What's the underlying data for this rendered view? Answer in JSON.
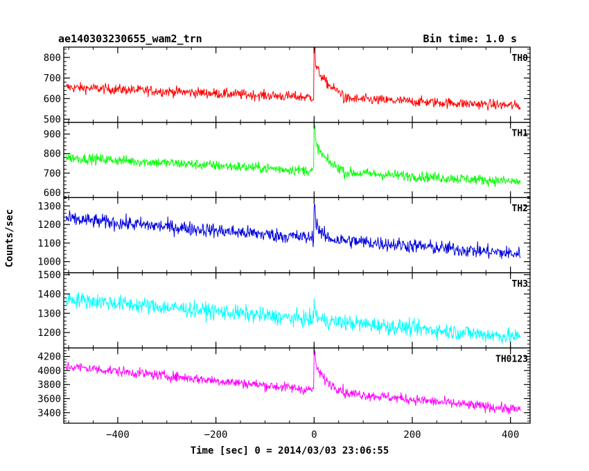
{
  "header": {
    "title": "ae140303230655_wam2_trn",
    "bin_time": "Bin time: 1.0 s"
  },
  "chart_data": {
    "type": "line",
    "xlabel": "Time [sec] 0 = 2014/03/03 23:06:55",
    "ylabel": "Counts/sec",
    "xlim": [
      -510,
      440
    ],
    "xticks": [
      -400,
      -200,
      0,
      200,
      400
    ],
    "grid": false,
    "panels": [
      {
        "name": "TH0",
        "color": "#ff0000",
        "ylim": [
          485,
          850
        ],
        "yticks": [
          500,
          600,
          700,
          800
        ],
        "start": 655,
        "end": 565,
        "noise": 45,
        "burst_peak": 850,
        "burst_decay": 30,
        "after_drop": 30
      },
      {
        "name": "TH1",
        "color": "#00ff00",
        "ylim": [
          575,
          960
        ],
        "yticks": [
          600,
          700,
          800,
          900
        ],
        "start": 780,
        "end": 655,
        "noise": 48,
        "burst_peak": 945,
        "burst_decay": 25,
        "after_drop": 40
      },
      {
        "name": "TH2",
        "color": "#0000dd",
        "ylim": [
          940,
          1345
        ],
        "yticks": [
          1000,
          1100,
          1200,
          1300
        ],
        "start": 1230,
        "end": 1040,
        "noise": 70,
        "burst_peak": 1320,
        "burst_decay": 10,
        "after_drop": 20
      },
      {
        "name": "TH3",
        "color": "#00ffff",
        "ylim": [
          1120,
          1510
        ],
        "yticks": [
          1200,
          1300,
          1400,
          1500
        ],
        "start": 1375,
        "end": 1175,
        "noise": 75,
        "burst_peak": 1360,
        "burst_decay": 5,
        "after_drop": 0
      },
      {
        "name": "TH0123",
        "color": "#ff00ff",
        "ylim": [
          3250,
          4320
        ],
        "yticks": [
          3400,
          3600,
          3800,
          4000,
          4200
        ],
        "start": 4060,
        "end": 3440,
        "noise": 130,
        "burst_peak": 4290,
        "burst_decay": 25,
        "after_drop": 120
      }
    ]
  }
}
